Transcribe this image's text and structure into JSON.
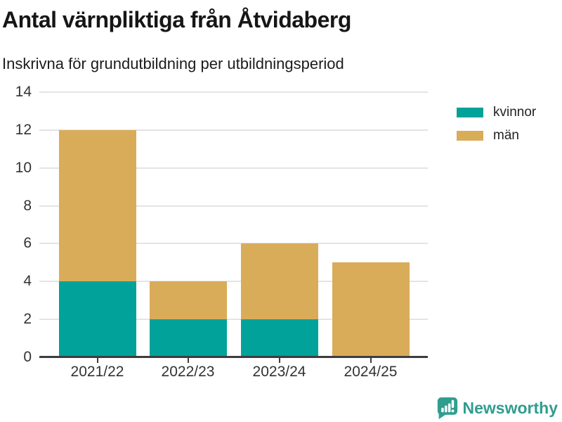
{
  "title": "Antal värnpliktiga från Åtvidaberg",
  "subtitle": "Inskrivna för grundutbildning per utbildningsperiod",
  "chart_data": {
    "type": "bar",
    "stacked": true,
    "title": "Antal värnpliktiga från Åtvidaberg",
    "subtitle": "Inskrivna för grundutbildning per utbildningsperiod",
    "categories": [
      "2021/22",
      "2022/23",
      "2023/24",
      "2024/25"
    ],
    "series": [
      {
        "name": "kvinnor",
        "color": "#00a29a",
        "values": [
          4,
          2,
          2,
          0
        ]
      },
      {
        "name": "män",
        "color": "#d9ac59",
        "values": [
          8,
          2,
          4,
          5
        ]
      }
    ],
    "totals": [
      12,
      4,
      6,
      5
    ],
    "xlabel": "",
    "ylabel": "",
    "ylim": [
      0,
      14
    ],
    "yticks": [
      0,
      2,
      4,
      6,
      8,
      10,
      12,
      14
    ],
    "grid": true,
    "legend_position": "right-top"
  },
  "colors": {
    "kvinnor": "#00a29a",
    "man": "#d9ac59",
    "axis_line": "#3d3d3d",
    "gridline": "#e4e4e4",
    "text": "#333333",
    "brand_teal": "#2f9e8f"
  },
  "footer": {
    "brand": "Newsworthy"
  }
}
